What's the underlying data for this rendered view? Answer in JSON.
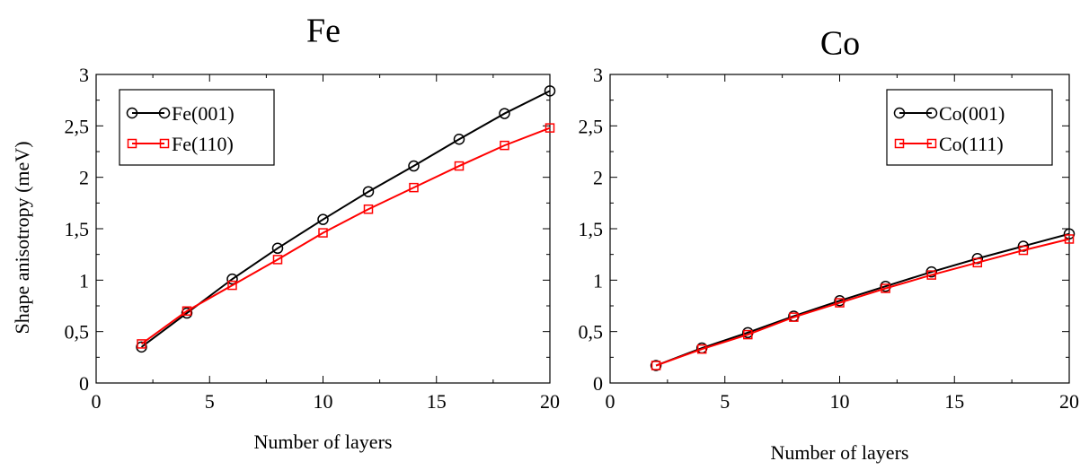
{
  "chart_data": [
    {
      "type": "line",
      "title": "Fe",
      "xlabel": "Number of layers",
      "ylabel": "Shape anisotropy (meV)",
      "xlim": [
        0,
        20
      ],
      "ylim": [
        0,
        3
      ],
      "xticks": [
        "0",
        "5",
        "10",
        "15",
        "20"
      ],
      "yticks": [
        "0",
        "0,5",
        "1",
        "1,5",
        "2",
        "2,5",
        "3"
      ],
      "grid": false,
      "legend_position": "top-left",
      "x": [
        2,
        4,
        6,
        8,
        10,
        12,
        14,
        16,
        18,
        20
      ],
      "series": [
        {
          "name": "Fe(001)",
          "color": "#000000",
          "marker": "circle",
          "values": [
            0.35,
            0.68,
            1.01,
            1.31,
            1.59,
            1.86,
            2.11,
            2.37,
            2.62,
            2.84
          ]
        },
        {
          "name": "Fe(110)",
          "color": "#ff0000",
          "marker": "square",
          "values": [
            0.38,
            0.7,
            0.95,
            1.2,
            1.46,
            1.69,
            1.9,
            2.11,
            2.31,
            2.48
          ]
        }
      ]
    },
    {
      "type": "line",
      "title": "Co",
      "xlabel": "Number of layers",
      "ylabel": "",
      "xlim": [
        0,
        20
      ],
      "ylim": [
        0,
        3
      ],
      "xticks": [
        "0",
        "5",
        "10",
        "15",
        "20"
      ],
      "yticks": [
        "0",
        "0,5",
        "1",
        "1,5",
        "2",
        "2,5",
        "3"
      ],
      "grid": false,
      "legend_position": "top-right",
      "x": [
        2,
        4,
        6,
        8,
        10,
        12,
        14,
        16,
        18,
        20
      ],
      "series": [
        {
          "name": "Co(001)",
          "color": "#000000",
          "marker": "circle",
          "values": [
            0.17,
            0.34,
            0.49,
            0.65,
            0.8,
            0.94,
            1.08,
            1.21,
            1.33,
            1.45
          ]
        },
        {
          "name": "Co(111)",
          "color": "#ff0000",
          "marker": "square",
          "values": [
            0.17,
            0.33,
            0.47,
            0.64,
            0.78,
            0.92,
            1.05,
            1.17,
            1.29,
            1.4
          ]
        }
      ]
    }
  ]
}
